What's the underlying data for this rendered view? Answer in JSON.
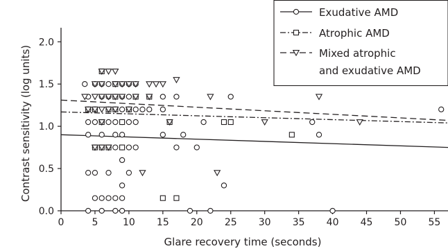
{
  "chart_data": {
    "type": "scatter",
    "xlabel": "Glare recovery time (seconds)",
    "ylabel": "Contrast sensitivity (log units)",
    "xlim": [
      0,
      57
    ],
    "ylim": [
      0,
      2.15
    ],
    "x_ticks": [
      0,
      5,
      10,
      15,
      20,
      25,
      30,
      35,
      40,
      45,
      50,
      55
    ],
    "y_ticks": [
      0.0,
      0.5,
      1.0,
      1.5,
      2.0
    ],
    "x_tick_labels": [
      "0",
      "5",
      "10",
      "15",
      "20",
      "25",
      "30",
      "35",
      "40",
      "45",
      "50",
      "55"
    ],
    "y_tick_labels": [
      "0.0",
      "0.5",
      "1.0",
      "1.5",
      "2.0"
    ],
    "grid": false,
    "legend_position": "top-right",
    "series": [
      {
        "name": "Exudative AMD",
        "marker": "circle",
        "trend_style": "solid",
        "trend": [
          [
            0,
            0.9
          ],
          [
            57,
            0.75
          ]
        ],
        "points": [
          [
            3.5,
            1.5
          ],
          [
            4,
            1.35
          ],
          [
            4,
            1.2
          ],
          [
            4,
            1.05
          ],
          [
            4,
            0.9
          ],
          [
            4,
            0.45
          ],
          [
            4,
            0
          ],
          [
            5,
            1.5
          ],
          [
            5,
            1.2
          ],
          [
            5,
            1.05
          ],
          [
            5,
            0.75
          ],
          [
            5,
            0.45
          ],
          [
            5,
            0.15
          ],
          [
            6,
            1.5
          ],
          [
            6,
            1.35
          ],
          [
            6,
            1.05
          ],
          [
            6,
            0.9
          ],
          [
            6,
            0.15
          ],
          [
            6,
            0
          ],
          [
            7,
            1.5
          ],
          [
            7,
            1.35
          ],
          [
            7,
            1.2
          ],
          [
            7,
            1.05
          ],
          [
            7,
            0.75
          ],
          [
            7,
            0.45
          ],
          [
            7,
            0.15
          ],
          [
            8,
            1.5
          ],
          [
            8,
            1.35
          ],
          [
            8,
            1.2
          ],
          [
            8,
            1.05
          ],
          [
            8,
            0.9
          ],
          [
            8,
            0.75
          ],
          [
            8,
            0.15
          ],
          [
            8,
            0
          ],
          [
            9,
            1.5
          ],
          [
            9,
            1.35
          ],
          [
            9,
            1.2
          ],
          [
            9,
            1.05
          ],
          [
            9,
            0.9
          ],
          [
            9,
            0.75
          ],
          [
            9,
            0.6
          ],
          [
            9,
            0.3
          ],
          [
            9,
            0.15
          ],
          [
            9,
            0
          ],
          [
            10,
            1.5
          ],
          [
            10,
            1.35
          ],
          [
            10,
            1.2
          ],
          [
            10,
            1.05
          ],
          [
            10,
            0.75
          ],
          [
            10,
            0.45
          ],
          [
            11,
            1.5
          ],
          [
            11,
            1.35
          ],
          [
            11,
            1.2
          ],
          [
            11,
            1.05
          ],
          [
            11,
            0.75
          ],
          [
            12,
            1.2
          ],
          [
            13,
            1.35
          ],
          [
            13,
            1.2
          ],
          [
            15,
            1.35
          ],
          [
            15,
            1.2
          ],
          [
            15,
            0.9
          ],
          [
            17,
            1.35
          ],
          [
            17,
            0.75
          ],
          [
            18,
            0.9
          ],
          [
            19,
            0
          ],
          [
            20,
            0.75
          ],
          [
            21,
            1.05
          ],
          [
            22,
            0
          ],
          [
            24,
            0.3
          ],
          [
            25,
            1.35
          ],
          [
            37,
            1.05
          ],
          [
            38,
            0.9
          ],
          [
            40,
            0
          ],
          [
            56,
            1.2
          ]
        ]
      },
      {
        "name": "Atrophic AMD",
        "marker": "square",
        "trend_style": "dash-dot",
        "trend": [
          [
            0,
            1.17
          ],
          [
            57,
            1.04
          ]
        ],
        "points": [
          [
            4,
            1.2
          ],
          [
            5,
            1.2
          ],
          [
            5,
            0.75
          ],
          [
            6,
            1.65
          ],
          [
            6,
            1.05
          ],
          [
            6,
            0.75
          ],
          [
            7,
            1.2
          ],
          [
            7,
            0.75
          ],
          [
            8,
            1.5
          ],
          [
            8,
            1.35
          ],
          [
            8,
            1.2
          ],
          [
            9,
            1.05
          ],
          [
            9,
            0.75
          ],
          [
            10,
            1.2
          ],
          [
            11,
            1.35
          ],
          [
            13,
            1.35
          ],
          [
            15,
            0.15
          ],
          [
            16,
            1.05
          ],
          [
            17,
            0.15
          ],
          [
            24,
            1.05
          ],
          [
            25,
            1.05
          ],
          [
            34,
            0.9
          ]
        ]
      },
      {
        "name": "Mixed atrophic\nand exudative AMD",
        "marker": "triangle-down",
        "trend_style": "dashed",
        "trend": [
          [
            0,
            1.31
          ],
          [
            57,
            1.07
          ]
        ],
        "points": [
          [
            3.5,
            1.35
          ],
          [
            4,
            1.2
          ],
          [
            5,
            1.5
          ],
          [
            5,
            1.35
          ],
          [
            5,
            1.2
          ],
          [
            5,
            0.75
          ],
          [
            6,
            1.65
          ],
          [
            6,
            1.5
          ],
          [
            6,
            1.35
          ],
          [
            6,
            1.2
          ],
          [
            6,
            1.05
          ],
          [
            6,
            0.75
          ],
          [
            7,
            1.65
          ],
          [
            7,
            1.35
          ],
          [
            7,
            1.2
          ],
          [
            7,
            0.75
          ],
          [
            8,
            1.65
          ],
          [
            8,
            1.5
          ],
          [
            8,
            1.35
          ],
          [
            8,
            1.2
          ],
          [
            9,
            1.5
          ],
          [
            9,
            1.35
          ],
          [
            10,
            1.5
          ],
          [
            10,
            1.2
          ],
          [
            11,
            1.5
          ],
          [
            11,
            1.35
          ],
          [
            12,
            0.45
          ],
          [
            13,
            1.5
          ],
          [
            13,
            1.35
          ],
          [
            14,
            1.5
          ],
          [
            15,
            1.5
          ],
          [
            16,
            1.05
          ],
          [
            17,
            1.55
          ],
          [
            22,
            1.35
          ],
          [
            23,
            0.45
          ],
          [
            30,
            1.05
          ],
          [
            38,
            1.35
          ],
          [
            44,
            1.05
          ]
        ]
      }
    ]
  }
}
